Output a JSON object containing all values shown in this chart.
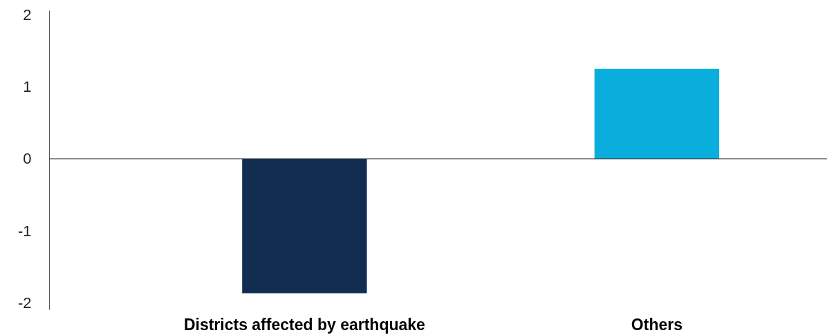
{
  "chart_data": {
    "type": "bar",
    "categories": [
      "Districts affected by earthquake",
      "Others"
    ],
    "values": [
      -1.87,
      1.25
    ],
    "colors": [
      "#112e51",
      "#0aaedc"
    ],
    "ylim": [
      -2.1,
      2.06
    ],
    "yticks": [
      -2,
      -1,
      0,
      1,
      2
    ],
    "ref_lines": [
      {
        "axis": "y",
        "value": 0,
        "color": "#333333"
      }
    ],
    "grid": false
  }
}
